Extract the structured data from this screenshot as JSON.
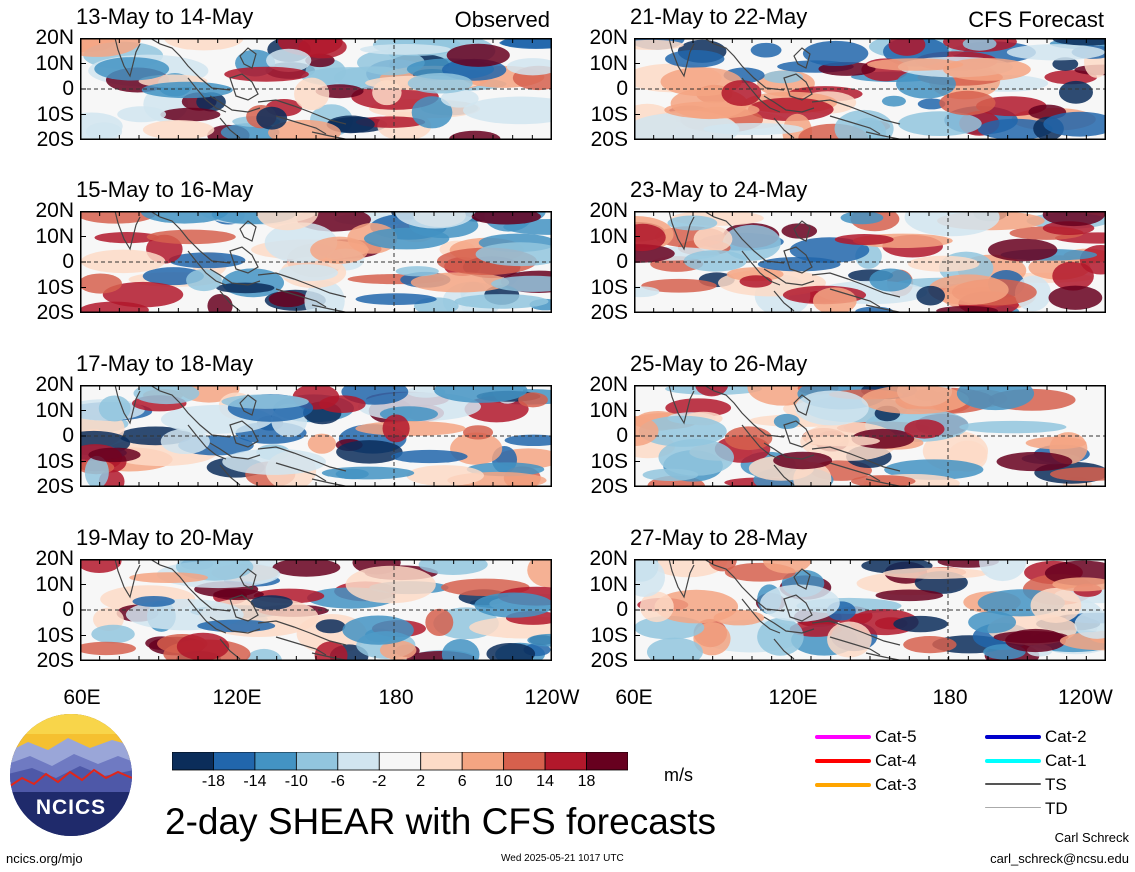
{
  "panels": [
    {
      "title": "13-May to 14-May",
      "tag": "Observed",
      "column": "left",
      "row": 0,
      "seed": 1
    },
    {
      "title": "15-May to 16-May",
      "tag": "",
      "column": "left",
      "row": 1,
      "seed": 2
    },
    {
      "title": "17-May to 18-May",
      "tag": "",
      "column": "left",
      "row": 2,
      "seed": 3
    },
    {
      "title": "19-May to 20-May",
      "tag": "",
      "column": "left",
      "row": 3,
      "seed": 4
    },
    {
      "title": "21-May to 22-May",
      "tag": "CFS Forecast",
      "column": "right",
      "row": 0,
      "seed": 5
    },
    {
      "title": "23-May to 24-May",
      "tag": "",
      "column": "right",
      "row": 1,
      "seed": 6
    },
    {
      "title": "25-May to 26-May",
      "tag": "",
      "column": "right",
      "row": 2,
      "seed": 7
    },
    {
      "title": "27-May to 28-May",
      "tag": "",
      "column": "right",
      "row": 3,
      "seed": 8
    }
  ],
  "lat_labels": [
    "20N",
    "10N",
    "0",
    "10S",
    "20S"
  ],
  "lon_labels_left": [
    "60E",
    "120E",
    "180",
    "120W"
  ],
  "lon_labels_right": [
    "60E",
    "120E",
    "180",
    "120W"
  ],
  "colorbar": {
    "labels": [
      "-18",
      "-14",
      "-10",
      "-6",
      "-2",
      "2",
      "6",
      "10",
      "14",
      "18"
    ],
    "colors": [
      "#0b2d5a",
      "#2166ac",
      "#4393c3",
      "#92c5de",
      "#d1e5f0",
      "#f7f7f7",
      "#fddbc7",
      "#f4a582",
      "#d6604d",
      "#b2182b",
      "#67001f"
    ],
    "units": "m/s"
  },
  "main_title": "2-day SHEAR with CFS forecasts",
  "logo": {
    "text": "NCICS"
  },
  "footer": {
    "left": "ncics.org/mjo",
    "center": "Wed 2025-05-21 1017 UTC",
    "author": "Carl Schreck",
    "email": "carl_schreck@ncsu.edu"
  },
  "legend": [
    {
      "label": "Cat-5",
      "color": "#ff00ff"
    },
    {
      "label": "Cat-4",
      "color": "#ff0000"
    },
    {
      "label": "Cat-3",
      "color": "#ffa500"
    },
    {
      "label": "Cat-2",
      "color": "#0000cc"
    },
    {
      "label": "Cat-1",
      "color": "#00ffff"
    },
    {
      "label": "TS",
      "color": "#555555"
    },
    {
      "label": "TD",
      "color": "#aaaaaa"
    }
  ]
}
